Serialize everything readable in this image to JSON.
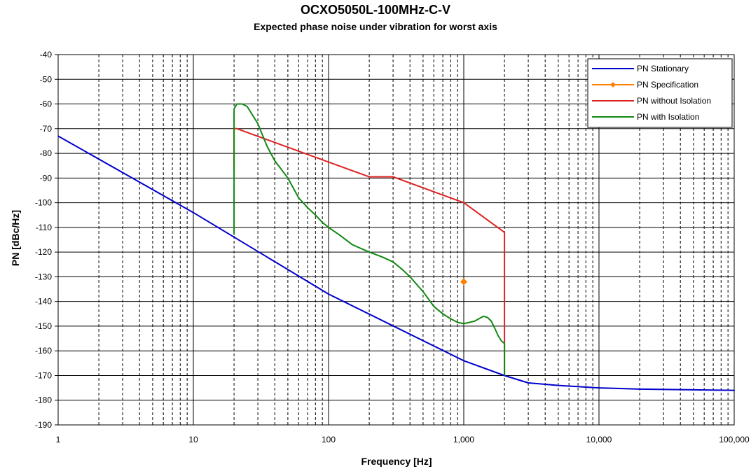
{
  "chart_data": {
    "type": "line",
    "title": "OCXO5050L-100MHz-C-V",
    "subtitle": "Expected phase noise under vibration for worst axis",
    "xlabel": "Frequency [Hz]",
    "ylabel": "PN [dBc/Hz]",
    "xscale": "log",
    "xlim": [
      1,
      100000
    ],
    "ylim": [
      -190,
      -40
    ],
    "grid": "on",
    "legend_position": "top-right",
    "x_tick_labels": [
      "1",
      "10",
      "100",
      "1,000",
      "10,000",
      "100,000"
    ],
    "y_tick_labels": [
      "-40",
      "-50",
      "-60",
      "-70",
      "-80",
      "-90",
      "-100",
      "-110",
      "-120",
      "-130",
      "-140",
      "-150",
      "-160",
      "-170",
      "-180",
      "-190"
    ],
    "series": [
      {
        "name": "PN Stationary",
        "color": "#0000cc",
        "marker": "none",
        "x": [
          1,
          10,
          100,
          1000,
          2000,
          3000,
          5000,
          10000,
          20000,
          50000,
          100000,
          120000
        ],
        "y": [
          -73,
          -104,
          -137,
          -164,
          -170,
          -173,
          -174,
          -175,
          -175.5,
          -175.8,
          -176,
          -176.2
        ]
      },
      {
        "name": "PN Specification",
        "color": "#ff8000",
        "marker": "diamond",
        "x": [
          1000
        ],
        "y": [
          -132
        ]
      },
      {
        "name": "PN without Isolation",
        "color": "#dd2222",
        "marker": "none",
        "x": [
          20,
          20,
          21,
          200,
          300,
          1000,
          2000,
          2000
        ],
        "y": [
          -87,
          -70,
          -70,
          -89.5,
          -89.5,
          -100,
          -112,
          -170
        ]
      },
      {
        "name": "PN with Isolation",
        "color": "#118811",
        "marker": "none",
        "x": [
          20,
          20,
          21,
          22,
          23,
          25,
          30,
          35,
          40,
          50,
          60,
          70,
          80,
          90,
          100,
          120,
          150,
          200,
          250,
          300,
          350,
          400,
          500,
          600,
          700,
          800,
          900,
          1000,
          1200,
          1400,
          1500,
          1600,
          1700,
          1800,
          1900,
          2000,
          2000
        ],
        "y": [
          -113,
          -62,
          -60,
          -60,
          -60,
          -61,
          -68,
          -77,
          -83,
          -90,
          -98,
          -102,
          -105,
          -108,
          -110,
          -113,
          -117,
          -120,
          -122,
          -124,
          -127,
          -130,
          -136,
          -142,
          -145,
          -147,
          -148.5,
          -149,
          -148,
          -146,
          -146.5,
          -148,
          -151,
          -154,
          -156,
          -157,
          -170
        ]
      }
    ]
  }
}
